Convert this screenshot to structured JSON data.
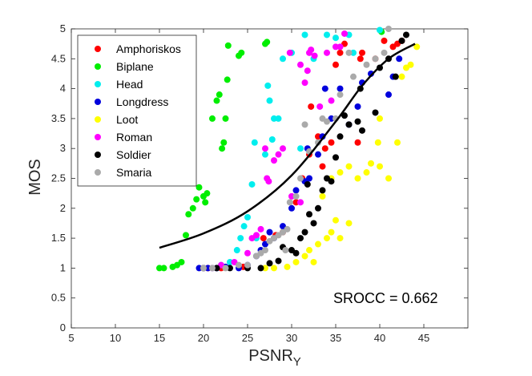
{
  "chart_data": {
    "type": "scatter",
    "title": "",
    "xlabel": "PSNR",
    "xlabel_sub": "Y",
    "ylabel": "MOS",
    "xlim": [
      5,
      50
    ],
    "ylim": [
      0,
      5
    ],
    "xticks": [
      5,
      10,
      15,
      20,
      25,
      30,
      35,
      40,
      45
    ],
    "yticks": [
      0,
      0.5,
      1,
      1.5,
      2,
      2.5,
      3,
      3.5,
      4,
      4.5,
      5
    ],
    "grid": false,
    "legend_position": "top-left",
    "annotation": "SROCC = 0.662",
    "series": [
      {
        "name": "Amphoriskos",
        "color": "#ff0000",
        "points": [
          [
            20.5,
            1.0
          ],
          [
            22.0,
            1.0
          ],
          [
            24.5,
            1.02
          ],
          [
            26.8,
            1.5
          ],
          [
            28.2,
            1.55
          ],
          [
            29.0,
            1.6
          ],
          [
            30.5,
            2.1
          ],
          [
            31.2,
            2.5
          ],
          [
            32.0,
            2.9
          ],
          [
            33.0,
            3.2
          ],
          [
            33.5,
            2.7
          ],
          [
            34.5,
            3.1
          ],
          [
            35.0,
            4.4
          ],
          [
            35.5,
            4.6
          ],
          [
            36.0,
            4.75
          ],
          [
            37.5,
            3.1
          ],
          [
            37.8,
            4.5
          ],
          [
            38.0,
            4.6
          ],
          [
            39.5,
            4.5
          ],
          [
            40.5,
            4.8
          ],
          [
            41.5,
            4.7
          ],
          [
            42.0,
            4.75
          ],
          [
            42.5,
            4.8
          ],
          [
            32.2,
            3.7
          ],
          [
            33.8,
            3.0
          ]
        ]
      },
      {
        "name": "Biplane",
        "color": "#00ee00",
        "points": [
          [
            15.0,
            1.0
          ],
          [
            15.5,
            1.0
          ],
          [
            16.5,
            1.02
          ],
          [
            17.0,
            1.05
          ],
          [
            17.5,
            1.1
          ],
          [
            18.0,
            1.55
          ],
          [
            18.3,
            1.9
          ],
          [
            18.8,
            2.0
          ],
          [
            19.2,
            2.15
          ],
          [
            19.5,
            2.35
          ],
          [
            20.0,
            2.2
          ],
          [
            20.2,
            2.1
          ],
          [
            20.4,
            2.25
          ],
          [
            21.0,
            3.5
          ],
          [
            21.5,
            3.8
          ],
          [
            21.8,
            3.9
          ],
          [
            22.1,
            3.0
          ],
          [
            22.3,
            3.1
          ],
          [
            22.5,
            3.5
          ],
          [
            22.7,
            4.15
          ],
          [
            22.8,
            4.72
          ],
          [
            24.0,
            4.55
          ],
          [
            24.3,
            4.6
          ],
          [
            27.0,
            4.75
          ],
          [
            27.2,
            4.78
          ],
          [
            40.2,
            4.95
          ]
        ]
      },
      {
        "name": "Head",
        "color": "#00eeee",
        "points": [
          [
            20.0,
            1.0
          ],
          [
            21.0,
            1.0
          ],
          [
            22.0,
            1.05
          ],
          [
            23.0,
            1.1
          ],
          [
            23.8,
            1.3
          ],
          [
            24.2,
            1.5
          ],
          [
            24.6,
            1.7
          ],
          [
            25.0,
            1.85
          ],
          [
            25.5,
            2.4
          ],
          [
            26.0,
            1.5
          ],
          [
            25.8,
            3.1
          ],
          [
            27.0,
            2.9
          ],
          [
            27.3,
            4.05
          ],
          [
            27.5,
            3.8
          ],
          [
            27.8,
            3.15
          ],
          [
            28.0,
            3.5
          ],
          [
            28.5,
            3.5
          ],
          [
            29.0,
            4.5
          ],
          [
            30.0,
            4.6
          ],
          [
            31.0,
            3.0
          ],
          [
            31.5,
            4.9
          ],
          [
            32.5,
            4.5
          ],
          [
            34.0,
            4.9
          ],
          [
            35.0,
            4.85
          ],
          [
            36.5,
            4.9
          ],
          [
            37.0,
            4.6
          ],
          [
            40.0,
            4.98
          ]
        ]
      },
      {
        "name": "Longdress",
        "color": "#0000dd",
        "points": [
          [
            19.5,
            1.0
          ],
          [
            20.5,
            1.0
          ],
          [
            21.5,
            1.0
          ],
          [
            22.5,
            1.02
          ],
          [
            24.0,
            1.0
          ],
          [
            25.0,
            1.05
          ],
          [
            26.0,
            1.2
          ],
          [
            26.5,
            1.3
          ],
          [
            27.0,
            1.4
          ],
          [
            27.5,
            1.6
          ],
          [
            28.0,
            1.5
          ],
          [
            29.0,
            1.7
          ],
          [
            30.0,
            2.0
          ],
          [
            30.5,
            2.3
          ],
          [
            31.5,
            2.45
          ],
          [
            32.0,
            2.5
          ],
          [
            33.0,
            2.9
          ],
          [
            33.5,
            3.2
          ],
          [
            34.5,
            3.5
          ],
          [
            35.5,
            4.0
          ],
          [
            36.5,
            3.4
          ],
          [
            37.5,
            3.7
          ],
          [
            38.0,
            4.1
          ],
          [
            39.0,
            4.25
          ],
          [
            41.0,
            3.9
          ],
          [
            41.5,
            4.2
          ],
          [
            42.2,
            4.5
          ],
          [
            33.8,
            4.0
          ],
          [
            31.8,
            3.0
          ]
        ]
      },
      {
        "name": "Loot",
        "color": "#ffff00",
        "points": [
          [
            27.0,
            1.0
          ],
          [
            28.0,
            1.0
          ],
          [
            29.5,
            1.02
          ],
          [
            30.5,
            1.1
          ],
          [
            31.5,
            1.2
          ],
          [
            32.0,
            1.3
          ],
          [
            32.5,
            1.1
          ],
          [
            33.0,
            1.4
          ],
          [
            34.0,
            1.5
          ],
          [
            34.5,
            1.6
          ],
          [
            35.0,
            1.8
          ],
          [
            35.5,
            1.5
          ],
          [
            36.5,
            1.75
          ],
          [
            33.5,
            2.2
          ],
          [
            34.5,
            2.5
          ],
          [
            35.5,
            2.6
          ],
          [
            36.5,
            2.7
          ],
          [
            37.5,
            2.5
          ],
          [
            38.5,
            2.6
          ],
          [
            39.0,
            2.75
          ],
          [
            40.0,
            2.7
          ],
          [
            39.8,
            3.1
          ],
          [
            40.0,
            3.5
          ],
          [
            41.0,
            2.5
          ],
          [
            42.0,
            3.1
          ],
          [
            42.5,
            4.2
          ],
          [
            43.0,
            4.35
          ],
          [
            43.5,
            4.4
          ],
          [
            44.2,
            4.7
          ]
        ]
      },
      {
        "name": "Roman",
        "color": "#ff00ff",
        "points": [
          [
            20.0,
            1.0
          ],
          [
            21.0,
            1.0
          ],
          [
            22.0,
            1.05
          ],
          [
            23.5,
            1.1
          ],
          [
            25.0,
            1.25
          ],
          [
            25.5,
            1.5
          ],
          [
            26.0,
            1.55
          ],
          [
            26.5,
            1.65
          ],
          [
            27.2,
            2.5
          ],
          [
            27.4,
            2.45
          ],
          [
            28.0,
            2.8
          ],
          [
            28.5,
            2.9
          ],
          [
            29.0,
            3.0
          ],
          [
            30.0,
            2.2
          ],
          [
            31.0,
            2.1
          ],
          [
            31.5,
            4.1
          ],
          [
            31.8,
            4.3
          ],
          [
            32.0,
            4.6
          ],
          [
            32.2,
            4.65
          ],
          [
            32.6,
            4.55
          ],
          [
            33.2,
            3.7
          ],
          [
            34.0,
            4.6
          ],
          [
            35.0,
            4.7
          ],
          [
            35.5,
            4.7
          ],
          [
            36.0,
            4.92
          ],
          [
            27.0,
            3.0
          ],
          [
            31.0,
            4.4
          ],
          [
            34.5,
            3.8
          ],
          [
            29.8,
            4.6
          ]
        ]
      },
      {
        "name": "Soldier",
        "color": "#000000",
        "points": [
          [
            20.0,
            1.0
          ],
          [
            21.5,
            1.0
          ],
          [
            23.0,
            1.0
          ],
          [
            25.0,
            1.0
          ],
          [
            26.5,
            1.0
          ],
          [
            27.5,
            1.08
          ],
          [
            28.5,
            1.12
          ],
          [
            29.0,
            1.35
          ],
          [
            30.0,
            1.3
          ],
          [
            30.5,
            1.25
          ],
          [
            31.0,
            1.5
          ],
          [
            31.5,
            1.6
          ],
          [
            32.0,
            1.9
          ],
          [
            32.5,
            1.75
          ],
          [
            33.0,
            2.0
          ],
          [
            33.5,
            2.3
          ],
          [
            34.0,
            2.5
          ],
          [
            34.5,
            2.45
          ],
          [
            35.0,
            2.85
          ],
          [
            35.5,
            3.2
          ],
          [
            36.0,
            3.55
          ],
          [
            36.5,
            3.4
          ],
          [
            37.5,
            3.45
          ],
          [
            37.8,
            4.0
          ],
          [
            38.0,
            3.3
          ],
          [
            39.5,
            3.6
          ],
          [
            40.0,
            4.35
          ],
          [
            41.0,
            4.5
          ],
          [
            41.8,
            4.2
          ],
          [
            42.5,
            4.8
          ],
          [
            43.0,
            4.9
          ],
          [
            31.8,
            2.4
          ]
        ]
      },
      {
        "name": "Smaria",
        "color": "#aaaaaa",
        "points": [
          [
            20.0,
            1.0
          ],
          [
            21.0,
            1.0
          ],
          [
            22.5,
            1.0
          ],
          [
            24.0,
            1.05
          ],
          [
            25.0,
            1.05
          ],
          [
            26.0,
            1.2
          ],
          [
            26.5,
            1.25
          ],
          [
            27.0,
            1.3
          ],
          [
            27.5,
            1.45
          ],
          [
            28.0,
            1.5
          ],
          [
            28.5,
            1.55
          ],
          [
            29.0,
            1.6
          ],
          [
            29.5,
            1.65
          ],
          [
            29.8,
            2.1
          ],
          [
            30.5,
            2.2
          ],
          [
            31.0,
            2.5
          ],
          [
            31.5,
            3.4
          ],
          [
            32.0,
            2.95
          ],
          [
            33.0,
            3.1
          ],
          [
            33.5,
            3.5
          ],
          [
            34.0,
            3.45
          ],
          [
            35.0,
            3.5
          ],
          [
            35.5,
            3.9
          ],
          [
            36.5,
            4.6
          ],
          [
            37.0,
            4.2
          ],
          [
            38.5,
            4.4
          ],
          [
            39.5,
            4.5
          ],
          [
            40.5,
            4.6
          ],
          [
            41.0,
            5.0
          ],
          [
            29.3,
            1.3
          ]
        ]
      }
    ],
    "fit_curve": {
      "x": [
        15,
        20,
        25,
        30,
        35,
        38,
        41,
        44
      ],
      "y": [
        1.34,
        1.58,
        1.95,
        2.55,
        3.45,
        4.05,
        4.5,
        4.75
      ]
    }
  }
}
